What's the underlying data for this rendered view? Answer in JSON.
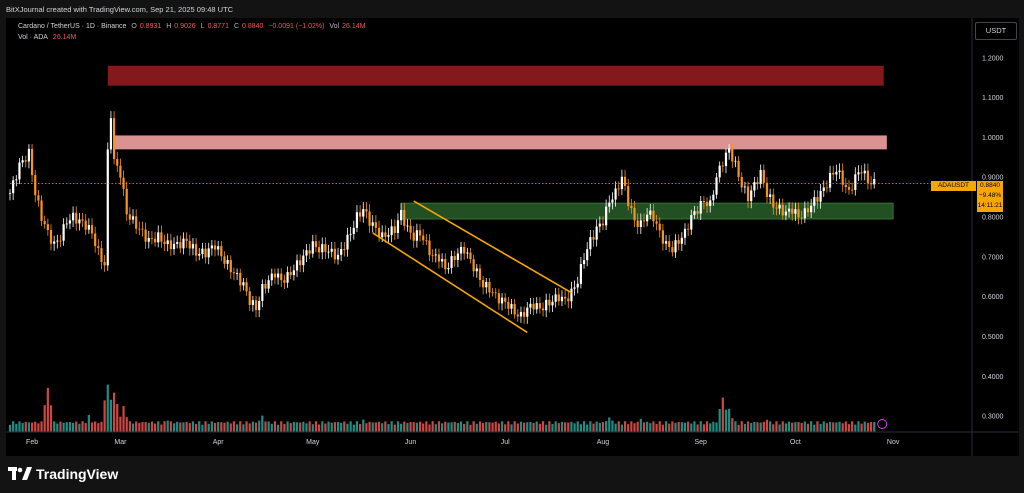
{
  "header": {
    "caption": "BitXJournal created with TradingView.com, Sep 21, 2025 09:48 UTC"
  },
  "legend": {
    "symbol": "Cardano / TetherUS · 1D · Binance",
    "o_label": "O",
    "o": "0.8931",
    "h_label": "H",
    "h": "0.9026",
    "l_label": "L",
    "l": "0.8771",
    "c_label": "C",
    "c": "0.8840",
    "change": "−0.0091 (−1.02%)",
    "vol_label": "Vol",
    "vol": "26.14M",
    "vol_series": "Vol · ADA",
    "vol_value": "26.14M"
  },
  "currency": "USDT",
  "price_badge": {
    "symbol": "ADAUSDT",
    "price": "0.8840",
    "change": "−9.48%",
    "countdown": "14:11:21"
  },
  "footer": {
    "brand": "TradingView"
  },
  "colors": {
    "background": "#000000",
    "up": "#ffffff",
    "down": "#f7931e",
    "vol_up": "#26a69a",
    "vol_down": "#ef5350",
    "zone_top": "#8b1a1f",
    "zone_mid": "#e79a9a",
    "zone_support": "#2e6b2e",
    "channel": "#f7a600",
    "last_price_line": "#f7a600"
  },
  "chart_data": {
    "type": "candlestick",
    "symbol": "ADAUSDT",
    "timeframe": "1D",
    "x_ticks": [
      "Feb",
      "Mar",
      "Apr",
      "May",
      "Jun",
      "Jul",
      "Aug",
      "Sep",
      "Oct",
      "Nov"
    ],
    "y_ticks": [
      "1.2000",
      "1.1000",
      "1.0000",
      "0.9000",
      "0.8000",
      "0.7000",
      "0.6000",
      "0.5000",
      "0.4000",
      "0.3000"
    ],
    "ylim": [
      0.26,
      1.3
    ],
    "x_range_days": [
      0,
      305
    ],
    "last_price": 0.884,
    "zones": [
      {
        "name": "resistance-high",
        "from_day": 31,
        "to_day": 277,
        "low": 1.13,
        "high": 1.18
      },
      {
        "name": "resistance-mid",
        "from_day": 33,
        "to_day": 278,
        "low": 0.97,
        "high": 1.005
      },
      {
        "name": "support",
        "from_day": 124,
        "to_day": 280,
        "low": 0.795,
        "high": 0.835
      }
    ],
    "channel": {
      "upper": [
        [
          128,
          0.84
        ],
        [
          178,
          0.61
        ]
      ],
      "lower": [
        [
          115,
          0.76
        ],
        [
          164,
          0.51
        ]
      ]
    },
    "price_path": [
      [
        0,
        0.86
      ],
      [
        3,
        0.93
      ],
      [
        6,
        0.96
      ],
      [
        8,
        0.86
      ],
      [
        10,
        0.8
      ],
      [
        12,
        0.76
      ],
      [
        14,
        0.73
      ],
      [
        16,
        0.75
      ],
      [
        18,
        0.79
      ],
      [
        20,
        0.8
      ],
      [
        22,
        0.79
      ],
      [
        24,
        0.78
      ],
      [
        26,
        0.76
      ],
      [
        28,
        0.71
      ],
      [
        30,
        0.68
      ],
      [
        31,
        0.96
      ],
      [
        32,
        1.06
      ],
      [
        33,
        0.94
      ],
      [
        35,
        0.91
      ],
      [
        37,
        0.81
      ],
      [
        39,
        0.79
      ],
      [
        41,
        0.77
      ],
      [
        44,
        0.74
      ],
      [
        47,
        0.75
      ],
      [
        50,
        0.73
      ],
      [
        53,
        0.73
      ],
      [
        56,
        0.74
      ],
      [
        59,
        0.71
      ],
      [
        62,
        0.71
      ],
      [
        65,
        0.73
      ],
      [
        68,
        0.69
      ],
      [
        71,
        0.66
      ],
      [
        74,
        0.63
      ],
      [
        76,
        0.59
      ],
      [
        78,
        0.57
      ],
      [
        80,
        0.62
      ],
      [
        82,
        0.64
      ],
      [
        84,
        0.66
      ],
      [
        86,
        0.64
      ],
      [
        88,
        0.65
      ],
      [
        90,
        0.67
      ],
      [
        92,
        0.69
      ],
      [
        94,
        0.71
      ],
      [
        96,
        0.73
      ],
      [
        98,
        0.72
      ],
      [
        100,
        0.72
      ],
      [
        102,
        0.71
      ],
      [
        104,
        0.7
      ],
      [
        106,
        0.73
      ],
      [
        108,
        0.76
      ],
      [
        110,
        0.8
      ],
      [
        112,
        0.82
      ],
      [
        114,
        0.79
      ],
      [
        116,
        0.77
      ],
      [
        118,
        0.75
      ],
      [
        120,
        0.76
      ],
      [
        122,
        0.77
      ],
      [
        124,
        0.81
      ],
      [
        126,
        0.77
      ],
      [
        128,
        0.75
      ],
      [
        130,
        0.76
      ],
      [
        132,
        0.73
      ],
      [
        134,
        0.7
      ],
      [
        136,
        0.7
      ],
      [
        138,
        0.67
      ],
      [
        140,
        0.69
      ],
      [
        142,
        0.71
      ],
      [
        144,
        0.72
      ],
      [
        146,
        0.69
      ],
      [
        148,
        0.66
      ],
      [
        150,
        0.63
      ],
      [
        152,
        0.62
      ],
      [
        154,
        0.6
      ],
      [
        156,
        0.59
      ],
      [
        158,
        0.58
      ],
      [
        160,
        0.56
      ],
      [
        162,
        0.55
      ],
      [
        164,
        0.57
      ],
      [
        166,
        0.58
      ],
      [
        168,
        0.57
      ],
      [
        170,
        0.58
      ],
      [
        172,
        0.59
      ],
      [
        174,
        0.6
      ],
      [
        176,
        0.59
      ],
      [
        178,
        0.61
      ],
      [
        180,
        0.64
      ],
      [
        182,
        0.7
      ],
      [
        184,
        0.74
      ],
      [
        186,
        0.77
      ],
      [
        188,
        0.79
      ],
      [
        190,
        0.84
      ],
      [
        192,
        0.86
      ],
      [
        194,
        0.9
      ],
      [
        196,
        0.84
      ],
      [
        198,
        0.79
      ],
      [
        200,
        0.78
      ],
      [
        202,
        0.81
      ],
      [
        204,
        0.8
      ],
      [
        206,
        0.76
      ],
      [
        208,
        0.73
      ],
      [
        210,
        0.72
      ],
      [
        212,
        0.74
      ],
      [
        214,
        0.76
      ],
      [
        216,
        0.8
      ],
      [
        218,
        0.82
      ],
      [
        220,
        0.84
      ],
      [
        222,
        0.83
      ],
      [
        224,
        0.9
      ],
      [
        226,
        0.94
      ],
      [
        228,
        0.97
      ],
      [
        230,
        0.93
      ],
      [
        232,
        0.88
      ],
      [
        234,
        0.85
      ],
      [
        236,
        0.88
      ],
      [
        238,
        0.91
      ],
      [
        240,
        0.86
      ],
      [
        242,
        0.83
      ],
      [
        244,
        0.82
      ],
      [
        246,
        0.81
      ],
      [
        248,
        0.82
      ],
      [
        250,
        0.8
      ],
      [
        252,
        0.81
      ],
      [
        254,
        0.83
      ],
      [
        256,
        0.85
      ],
      [
        258,
        0.87
      ],
      [
        260,
        0.9
      ],
      [
        262,
        0.92
      ],
      [
        264,
        0.89
      ],
      [
        266,
        0.86
      ],
      [
        268,
        0.9
      ],
      [
        270,
        0.92
      ],
      [
        272,
        0.89
      ],
      [
        274,
        0.884
      ]
    ],
    "volume_peaks": [
      [
        0,
        0.05
      ],
      [
        12,
        0.45
      ],
      [
        25,
        0.15
      ],
      [
        31,
        0.5
      ],
      [
        33,
        0.42
      ],
      [
        36,
        0.25
      ],
      [
        50,
        0.12
      ],
      [
        80,
        0.15
      ],
      [
        112,
        0.1
      ],
      [
        150,
        0.08
      ],
      [
        190,
        0.14
      ],
      [
        200,
        0.12
      ],
      [
        226,
        0.35
      ],
      [
        228,
        0.22
      ],
      [
        240,
        0.12
      ],
      [
        272,
        0.06
      ]
    ]
  }
}
